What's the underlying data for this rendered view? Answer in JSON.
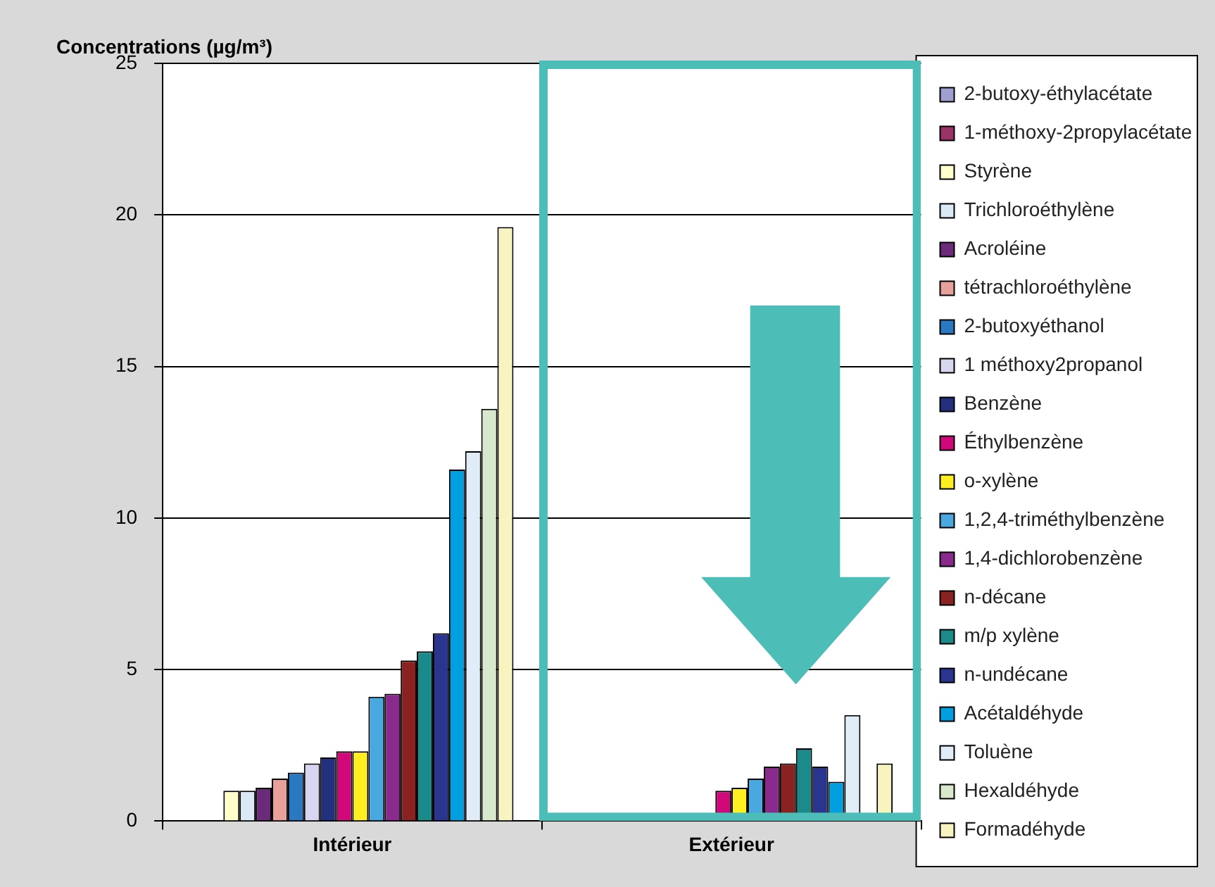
{
  "chart_data": {
    "type": "bar",
    "ylabel": "Concentrations (µg/m³)",
    "categories": [
      "Intérieur",
      "Extérieur"
    ],
    "ylim": [
      0,
      25
    ],
    "yticks": [
      0,
      5,
      10,
      15,
      20,
      25
    ],
    "grid": "y",
    "legend": "right",
    "series": [
      {
        "name": "2-butoxy-éthylacétate",
        "color": "#a0a0d0",
        "values": [
          null,
          null
        ]
      },
      {
        "name": "1-méthoxy-2propylacétate",
        "color": "#993366",
        "values": [
          null,
          null
        ]
      },
      {
        "name": "Styrène",
        "color": "#ffffcc",
        "values": [
          1.0,
          null
        ]
      },
      {
        "name": "Trichloroéthylène",
        "color": "#dae9f5",
        "values": [
          1.0,
          null
        ]
      },
      {
        "name": "Acroléine",
        "color": "#6b2a7a",
        "values": [
          1.1,
          null
        ]
      },
      {
        "name": "tétrachloroéthylène",
        "color": "#e8a09a",
        "values": [
          1.4,
          null
        ]
      },
      {
        "name": "2-butoxyéthanol",
        "color": "#2b78c2",
        "values": [
          1.6,
          null
        ]
      },
      {
        "name": "1 méthoxy2propanol",
        "color": "#d6d6f0",
        "values": [
          1.9,
          null
        ]
      },
      {
        "name": "Benzène",
        "color": "#23307d",
        "values": [
          2.1,
          null
        ]
      },
      {
        "name": "Éthylbenzène",
        "color": "#d0087a",
        "values": [
          2.3,
          1.0
        ]
      },
      {
        "name": "o-xylène",
        "color": "#ffee22",
        "values": [
          2.3,
          1.1
        ]
      },
      {
        "name": "1,2,4-triméthylbenzène",
        "color": "#4aa8e0",
        "values": [
          4.1,
          1.4
        ]
      },
      {
        "name": "1,4-dichlorobenzène",
        "color": "#8a2a8c",
        "values": [
          4.2,
          1.8
        ]
      },
      {
        "name": "n-décane",
        "color": "#8b2222",
        "values": [
          5.3,
          1.9
        ]
      },
      {
        "name": "m/p xylène",
        "color": "#1a8a8a",
        "values": [
          5.6,
          2.4
        ]
      },
      {
        "name": "n-undécane",
        "color": "#2a3590",
        "values": [
          6.2,
          1.8
        ]
      },
      {
        "name": "Acétaldéhyde",
        "color": "#00a0e0",
        "values": [
          11.6,
          1.3
        ]
      },
      {
        "name": "Toluène",
        "color": "#e0ecf8",
        "values": [
          12.2,
          3.5
        ]
      },
      {
        "name": "Hexaldéhyde",
        "color": "#d8e8cc",
        "values": [
          13.6,
          null
        ]
      },
      {
        "name": "Formadéhyde",
        "color": "#f8f4c0",
        "values": [
          19.6,
          1.9
        ]
      }
    ]
  }
}
